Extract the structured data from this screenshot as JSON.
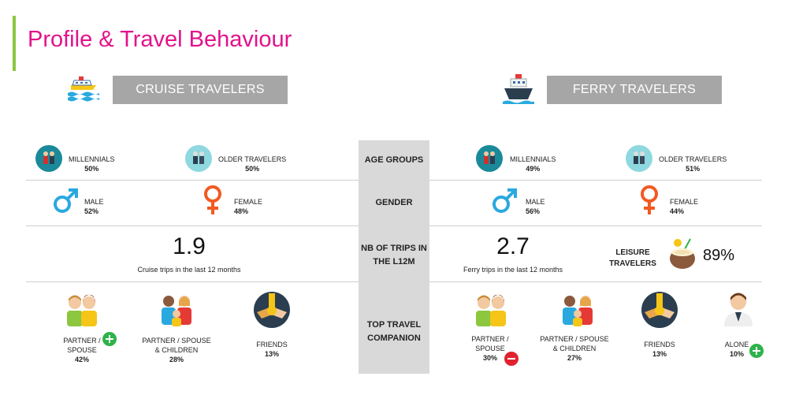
{
  "title": "Profile & Travel Behaviour",
  "colors": {
    "accent": "#e2128b",
    "bar": "#8dc63f",
    "banner": "#a6a6a6",
    "male": "#29a9df",
    "female": "#f15a22",
    "plus": "#2db34a",
    "minus": "#e0222f"
  },
  "cruise": {
    "banner": "CRUISE TRAVELERS",
    "millennials_label": "MILLENNIALS",
    "millennials_pct": "50%",
    "older_label": "OLDER TRAVELERS",
    "older_pct": "50%",
    "male_label": "MALE",
    "male_pct": "52%",
    "female_label": "FEMALE",
    "female_pct": "48%",
    "trips_value": "1.9",
    "trips_caption": "Cruise trips in the last 12 months",
    "companions": [
      {
        "label1": "PARTNER /",
        "label2": "SPOUSE",
        "pct": "42%",
        "badge": "plus"
      },
      {
        "label1": "PARTNER / SPOUSE",
        "label2": "& CHILDREN",
        "pct": "28%"
      },
      {
        "label1": "FRIENDS",
        "label2": "",
        "pct": "13%"
      }
    ]
  },
  "ferry": {
    "banner": "FERRY TRAVELERS",
    "millennials_label": "MILLENNIALS",
    "millennials_pct": "49%",
    "older_label": "OLDER TRAVELERS",
    "older_pct": "51%",
    "male_label": "MALE",
    "male_pct": "56%",
    "female_label": "FEMALE",
    "female_pct": "44%",
    "trips_value": "2.7",
    "trips_caption": "Ferry trips in the last 12 months",
    "leisure_label1": "LEISURE",
    "leisure_label2": "TRAVELERS",
    "leisure_pct": "89%",
    "companions": [
      {
        "label1": "PARTNER /",
        "label2": "SPOUSE",
        "pct": "30%",
        "badge": "minus"
      },
      {
        "label1": "PARTNER / SPOUSE",
        "label2": "& CHILDREN",
        "pct": "27%"
      },
      {
        "label1": "FRIENDS",
        "label2": "",
        "pct": "13%"
      },
      {
        "label1": "ALONE",
        "label2": "",
        "pct": "10%",
        "badge": "plus"
      }
    ]
  },
  "rows": {
    "age": "AGE GROUPS",
    "gender": "GENDER",
    "trips1": "NB OF TRIPS IN",
    "trips2": "THE L12M",
    "companion1": "TOP TRAVEL",
    "companion2": "COMPANION"
  }
}
